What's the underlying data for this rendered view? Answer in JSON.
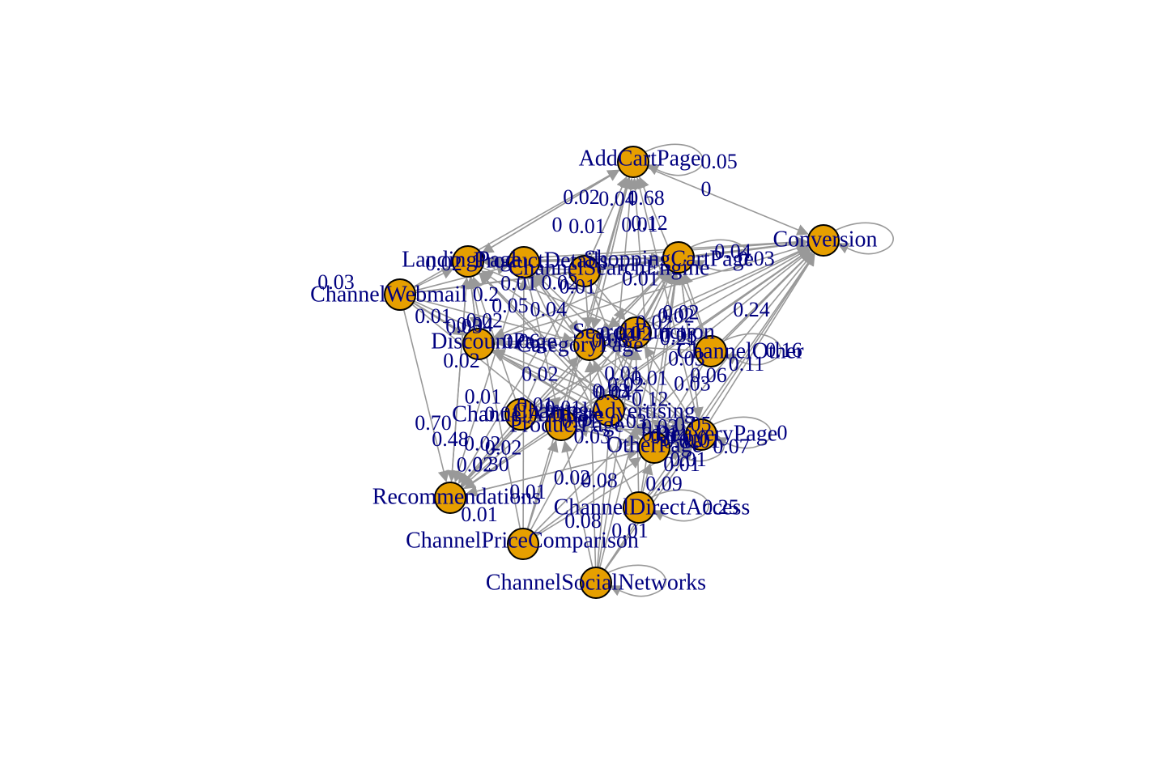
{
  "diagram": {
    "type": "markov-transition-graph",
    "node_fill": "#E69F00",
    "node_stroke": "#000000",
    "edge_color": "#999999",
    "label_color": "#00007F",
    "nodes": [
      {
        "id": "AddCartPage",
        "label": "AddCartPage"
      },
      {
        "id": "Conversion",
        "label": "Conversion"
      },
      {
        "id": "LandingPage",
        "label": "LandingPage"
      },
      {
        "id": "ProductDetails",
        "label": "ProductDetails"
      },
      {
        "id": "ChannelSearchEngine",
        "label": "ChannelSearchEngine"
      },
      {
        "id": "ShoppingCartPage",
        "label": "ShoppingCartPage"
      },
      {
        "id": "ChannelWebmail",
        "label": "ChannelWebmail"
      },
      {
        "id": "DiscountPage",
        "label": "DiscountPage"
      },
      {
        "id": "ChannelOther",
        "label": "ChannelOther"
      },
      {
        "id": "SearchFunction",
        "label": "SearchFunction"
      },
      {
        "id": "CategoryPage",
        "label": "CategoryPage"
      },
      {
        "id": "ChannelAffiliate",
        "label": "ChannelAffiliate"
      },
      {
        "id": "ProductPage",
        "label": "ProductPage"
      },
      {
        "id": "ChannelAdvertising",
        "label": "ChannelAdvertising"
      },
      {
        "id": "DeliveryPage",
        "label": "DeliveryPage"
      },
      {
        "id": "OtherPage",
        "label": "OtherPage"
      },
      {
        "id": "Recommendations",
        "label": "Recommendations"
      },
      {
        "id": "ChannelDirectAccess",
        "label": "ChannelDirectAccess"
      },
      {
        "id": "ChannelPriceComparison",
        "label": "ChannelPriceComparison"
      },
      {
        "id": "ChannelSocialNetworks",
        "label": "ChannelSocialNetworks"
      }
    ],
    "edge_labels": [
      "0.05",
      "0",
      "0.68",
      "0.02",
      "0.04",
      "0",
      "0.01",
      "0.01",
      "0.12",
      "0.04",
      "0.03",
      "0.24",
      "0.16",
      "0.11",
      "0",
      "0.07",
      "0.09",
      "0.25",
      "0.01",
      "0.01",
      "0.01",
      "0.01",
      "0.08",
      "0.01",
      "0.2",
      "0.03",
      "0.02",
      "0.48",
      "0.70",
      "0.30",
      "0.01",
      "0.08",
      "0.06",
      "0.02",
      "0.04",
      "0.03",
      "0.05",
      "0",
      "0.38",
      "0.21",
      "0.12",
      "0.03",
      "0.02",
      "0.01",
      "0.04",
      "0.03",
      "0.03",
      "0.02",
      "0.02",
      "0.01",
      "0.06",
      "0.04",
      "0.03",
      "0.02",
      "0.01",
      "0.05",
      "0.04",
      "0.02",
      "0.01",
      "0.01",
      "0.02",
      "0.03",
      "0.01",
      "0.04",
      "0.02",
      "0.01",
      "0.06",
      "0.01",
      "0.03",
      "0.02",
      "0.01",
      "0.02",
      "0.01",
      "0.03",
      "0.02",
      "0.01",
      "0.02",
      "0.01",
      "0.02",
      "0.01"
    ]
  }
}
